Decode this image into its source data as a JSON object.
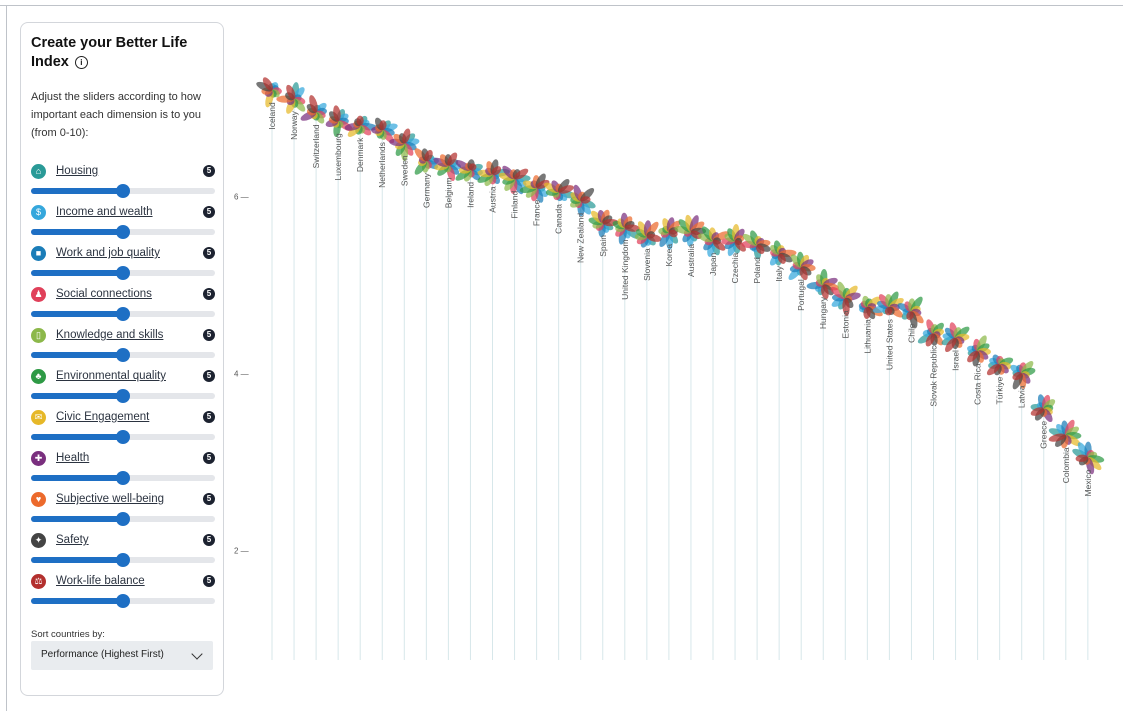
{
  "panel": {
    "title": "Create your Better Life Index",
    "info_icon": "info-icon",
    "description": "Adjust the sliders according to how important each dimension is to you (from 0-10):",
    "dimensions": [
      {
        "label": "Housing",
        "value": 5,
        "icon": "house-icon",
        "color": "#2a9a97"
      },
      {
        "label": "Income and wealth",
        "value": 5,
        "icon": "money-icon",
        "color": "#35a7dc"
      },
      {
        "label": "Work and job quality",
        "value": 5,
        "icon": "briefcase-icon",
        "color": "#1b7db8"
      },
      {
        "label": "Social connections",
        "value": 5,
        "icon": "people-icon",
        "color": "#e0405a"
      },
      {
        "label": "Knowledge and skills",
        "value": 5,
        "icon": "book-icon",
        "color": "#8cb84a"
      },
      {
        "label": "Environmental quality",
        "value": 5,
        "icon": "tree-icon",
        "color": "#2e9a45"
      },
      {
        "label": "Civic Engagement",
        "value": 5,
        "icon": "ballot-icon",
        "color": "#e6b828"
      },
      {
        "label": "Health",
        "value": 5,
        "icon": "plus-icon",
        "color": "#7a2f7e"
      },
      {
        "label": "Subjective well-being",
        "value": 5,
        "icon": "heart-icon",
        "color": "#ec6a2c"
      },
      {
        "label": "Safety",
        "value": 5,
        "icon": "walker-icon",
        "color": "#444444"
      },
      {
        "label": "Work-life balance",
        "value": 5,
        "icon": "scale-icon",
        "color": "#b3302e"
      }
    ],
    "slider_max": 10,
    "sort_label": "Sort countries by:",
    "sort_value": "Performance (Highest First)"
  },
  "chart_data": {
    "type": "scatter",
    "ylim": [
      0,
      7
    ],
    "yticks": [
      "2",
      "4",
      "6"
    ],
    "countries": [
      {
        "name": "Iceland",
        "y": 7.2
      },
      {
        "name": "Norway",
        "y": 7.1
      },
      {
        "name": "Switzerland",
        "y": 6.95
      },
      {
        "name": "Luxembourg",
        "y": 6.85
      },
      {
        "name": "Denmark",
        "y": 6.8
      },
      {
        "name": "Netherlands",
        "y": 6.75
      },
      {
        "name": "Sweden",
        "y": 6.6
      },
      {
        "name": "Germany",
        "y": 6.4
      },
      {
        "name": "Belgium",
        "y": 6.35
      },
      {
        "name": "Ireland",
        "y": 6.3
      },
      {
        "name": "Austria",
        "y": 6.25
      },
      {
        "name": "Finland",
        "y": 6.2
      },
      {
        "name": "France",
        "y": 6.1
      },
      {
        "name": "Canada",
        "y": 6.05
      },
      {
        "name": "New Zealand",
        "y": 5.95
      },
      {
        "name": "Spain",
        "y": 5.7
      },
      {
        "name": "United Kingdom",
        "y": 5.65
      },
      {
        "name": "Slovenia",
        "y": 5.55
      },
      {
        "name": "Korea",
        "y": 5.6
      },
      {
        "name": "Australia",
        "y": 5.6
      },
      {
        "name": "Japan",
        "y": 5.5
      },
      {
        "name": "Czechia",
        "y": 5.5
      },
      {
        "name": "Poland",
        "y": 5.45
      },
      {
        "name": "Italy",
        "y": 5.35
      },
      {
        "name": "Portugal",
        "y": 5.2
      },
      {
        "name": "Hungary",
        "y": 5.0
      },
      {
        "name": "Estonia",
        "y": 4.85
      },
      {
        "name": "Lithuania",
        "y": 4.75
      },
      {
        "name": "United States",
        "y": 4.75
      },
      {
        "name": "Chile",
        "y": 4.7
      },
      {
        "name": "Slovak Republic",
        "y": 4.45
      },
      {
        "name": "Israel",
        "y": 4.4
      },
      {
        "name": "Costa Rica",
        "y": 4.25
      },
      {
        "name": "Türkiye",
        "y": 4.1
      },
      {
        "name": "Latvia",
        "y": 4.0
      },
      {
        "name": "Greece",
        "y": 3.6
      },
      {
        "name": "Colombia",
        "y": 3.3
      },
      {
        "name": "Mexico",
        "y": 3.05
      }
    ],
    "petal_colors": [
      "#2a9a97",
      "#35a7dc",
      "#1b7db8",
      "#e0405a",
      "#8cb84a",
      "#2e9a45",
      "#e6b828",
      "#7a2f7e",
      "#ec6a2c",
      "#444444",
      "#b3302e"
    ]
  }
}
